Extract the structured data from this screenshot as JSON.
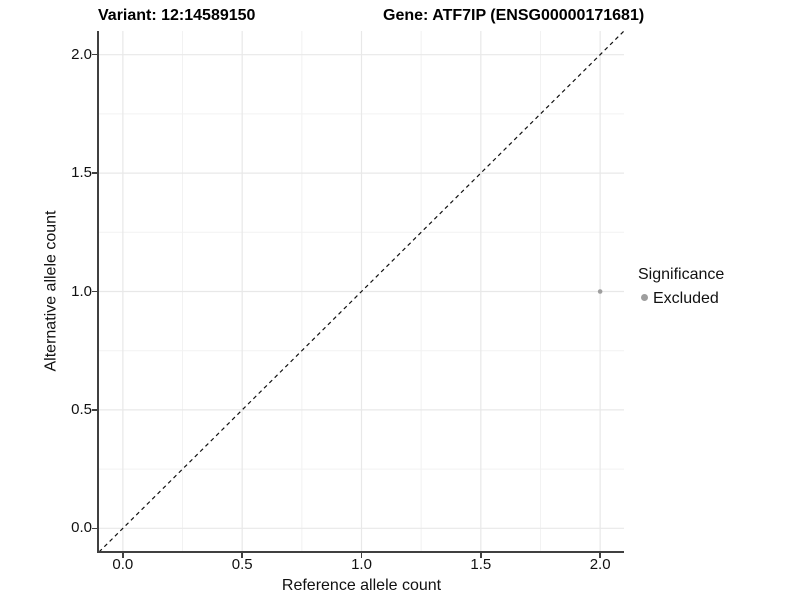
{
  "header": {
    "variant_title": "Variant: 12:14589150",
    "gene_title": "Gene: ATF7IP (ENSG00000171681)"
  },
  "legend": {
    "title": "Significance",
    "items": [
      {
        "label": "Excluded",
        "color": "#9e9e9e"
      }
    ]
  },
  "chart_data": {
    "type": "scatter",
    "title": "Variant: 12:14589150  |  Gene: ATF7IP (ENSG00000171681)",
    "xlabel": "Reference allele count",
    "ylabel": "Alternative allele count",
    "xlim": [
      -0.1,
      2.1
    ],
    "ylim": [
      -0.1,
      2.1
    ],
    "xticks": [
      "0.0",
      "0.5",
      "1.0",
      "1.5",
      "2.0"
    ],
    "yticks": [
      "0.0",
      "0.5",
      "1.0",
      "1.5",
      "2.0"
    ],
    "minor_grid_step": 0.25,
    "grid": true,
    "legend_position": "right",
    "reference_line": {
      "kind": "identity",
      "style": "dashed",
      "color": "#111111"
    },
    "series": [
      {
        "name": "Excluded",
        "color": "#9e9e9e",
        "points": [
          {
            "x": 2,
            "y": 1
          }
        ]
      }
    ]
  },
  "colors": {
    "grid_major": "#e8e8e8",
    "grid_minor": "#f2f2f2",
    "axis_line": "#404040",
    "point": "#9e9e9e"
  }
}
